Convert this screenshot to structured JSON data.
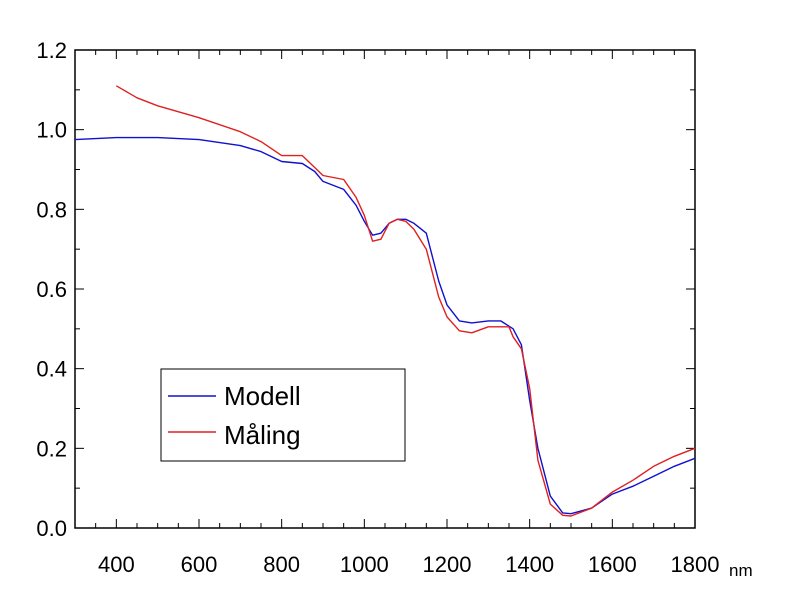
{
  "chart_data": {
    "type": "line",
    "title": "",
    "xlabel": "",
    "ylabel": "",
    "x_unit": "nm",
    "xlim": [
      300,
      1800
    ],
    "ylim": [
      0,
      1.2
    ],
    "xticks": [
      400,
      600,
      800,
      1000,
      1200,
      1400,
      1600,
      1800
    ],
    "xtick_labels": [
      "400",
      "600",
      "800",
      "1000",
      "1200",
      "1400",
      "1600",
      "1800"
    ],
    "yticks": [
      0,
      0.2,
      0.4,
      0.6,
      0.8,
      1.0,
      1.2
    ],
    "ytick_labels": [
      "0.0",
      "0.2",
      "0.4",
      "0.6",
      "0.8",
      "1.0",
      "1.2"
    ],
    "grid": false,
    "legend_position": "bottom-left",
    "series": [
      {
        "name": "Modell",
        "color": "#1010d0",
        "x": [
          300,
          400,
          500,
          600,
          700,
          750,
          800,
          850,
          880,
          900,
          950,
          980,
          1000,
          1020,
          1040,
          1060,
          1080,
          1100,
          1120,
          1150,
          1180,
          1200,
          1230,
          1260,
          1300,
          1330,
          1360,
          1380,
          1400,
          1420,
          1450,
          1480,
          1500,
          1550,
          1600,
          1650,
          1700,
          1750,
          1800
        ],
        "values": [
          0.975,
          0.98,
          0.98,
          0.975,
          0.96,
          0.945,
          0.92,
          0.915,
          0.895,
          0.87,
          0.85,
          0.81,
          0.77,
          0.735,
          0.74,
          0.765,
          0.775,
          0.775,
          0.765,
          0.74,
          0.62,
          0.56,
          0.52,
          0.515,
          0.52,
          0.52,
          0.5,
          0.46,
          0.32,
          0.2,
          0.08,
          0.038,
          0.036,
          0.05,
          0.085,
          0.105,
          0.13,
          0.155,
          0.175
        ]
      },
      {
        "name": "Måling",
        "color": "#e02020",
        "x": [
          400,
          450,
          500,
          600,
          700,
          750,
          800,
          850,
          880,
          900,
          950,
          980,
          1000,
          1020,
          1040,
          1060,
          1080,
          1100,
          1120,
          1150,
          1180,
          1200,
          1230,
          1260,
          1300,
          1330,
          1350,
          1360,
          1380,
          1400,
          1420,
          1450,
          1480,
          1500,
          1550,
          1600,
          1650,
          1700,
          1750,
          1800
        ],
        "values": [
          1.11,
          1.08,
          1.06,
          1.03,
          0.995,
          0.97,
          0.935,
          0.935,
          0.905,
          0.885,
          0.875,
          0.83,
          0.785,
          0.72,
          0.725,
          0.765,
          0.775,
          0.77,
          0.75,
          0.7,
          0.58,
          0.53,
          0.495,
          0.49,
          0.505,
          0.505,
          0.505,
          0.48,
          0.45,
          0.35,
          0.17,
          0.06,
          0.032,
          0.03,
          0.05,
          0.09,
          0.12,
          0.155,
          0.18,
          0.2
        ]
      }
    ]
  }
}
